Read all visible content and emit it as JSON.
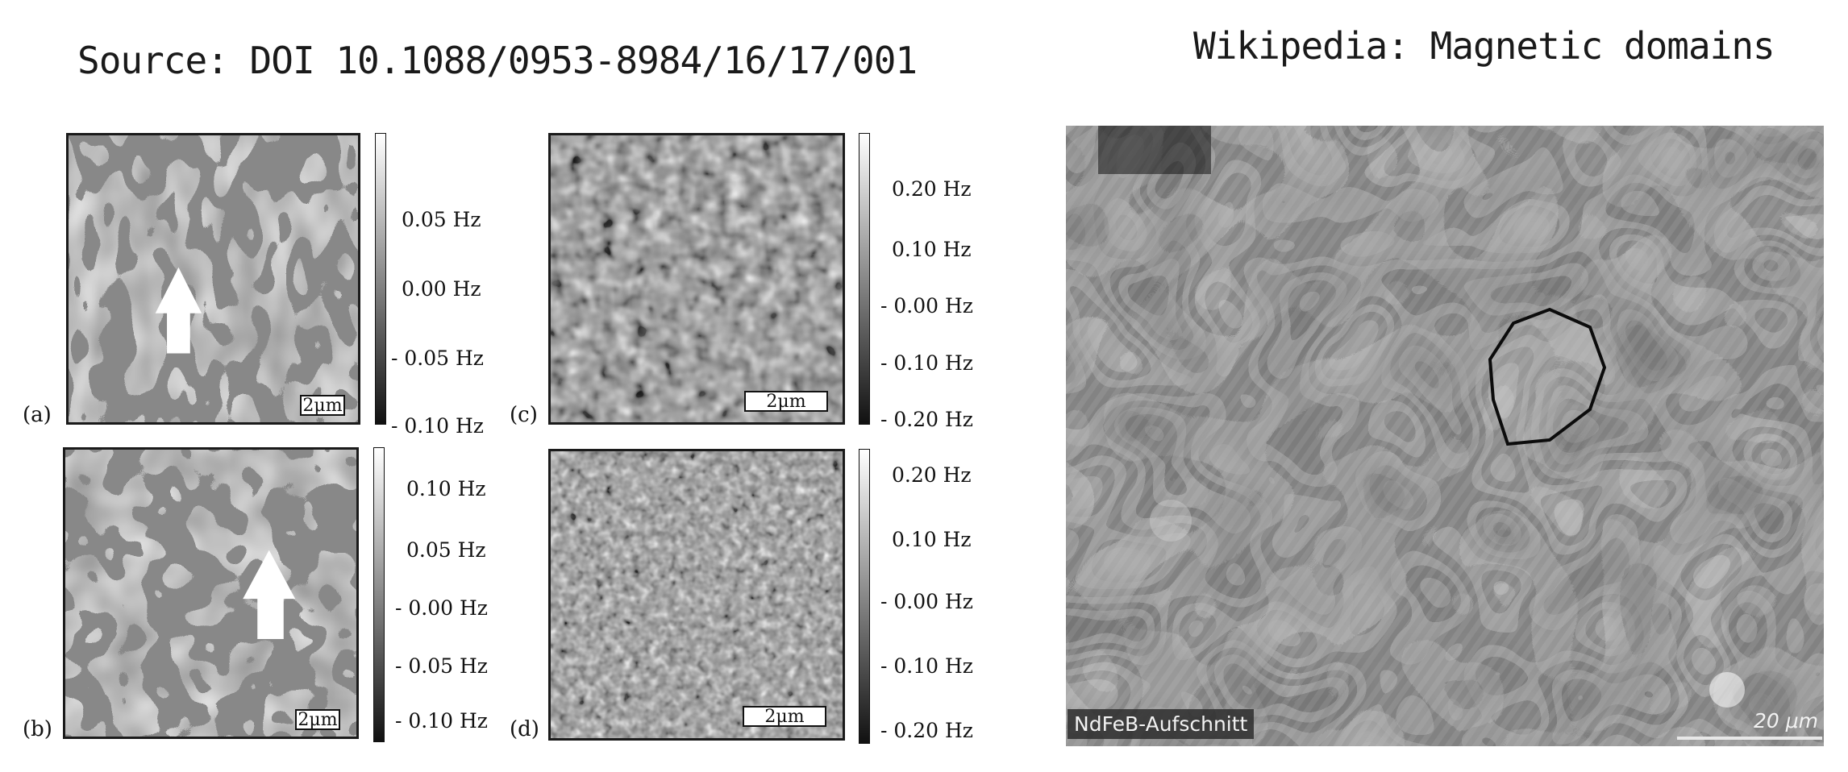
{
  "headings": {
    "left": "Source: DOI 10.1088/0953-8984/16/17/001",
    "right": "Wikipedia: Magnetic domains"
  },
  "figure": {
    "panels": [
      {
        "id": "a",
        "label": "(a)",
        "scale_bar": "2μm",
        "pattern": "maze",
        "has_arrow": true,
        "colorbar": [
          "0.05 Hz",
          "0.00 Hz",
          "- 0.05 Hz",
          "- 0.10 Hz"
        ]
      },
      {
        "id": "b",
        "label": "(b)",
        "scale_bar": "2μm",
        "pattern": "maze",
        "has_arrow": true,
        "colorbar": [
          "0.10 Hz",
          "0.05 Hz",
          "- 0.00 Hz",
          "- 0.05 Hz",
          "- 0.10 Hz"
        ]
      },
      {
        "id": "c",
        "label": "(c)",
        "scale_bar": "2μm",
        "pattern": "noise",
        "has_arrow": false,
        "colorbar": [
          "0.20 Hz",
          "0.10 Hz",
          "- 0.00 Hz",
          "- 0.10 Hz",
          "- 0.20 Hz"
        ]
      },
      {
        "id": "d",
        "label": "(d)",
        "scale_bar": "2μm",
        "pattern": "noise",
        "has_arrow": false,
        "colorbar": [
          "0.20 Hz",
          "0.10 Hz",
          "- 0.00 Hz",
          "- 0.10 Hz",
          "- 0.20 Hz"
        ]
      }
    ]
  },
  "sem_image": {
    "caption": "NdFeB-Aufschnitt",
    "scale_bar": "20 μm"
  }
}
